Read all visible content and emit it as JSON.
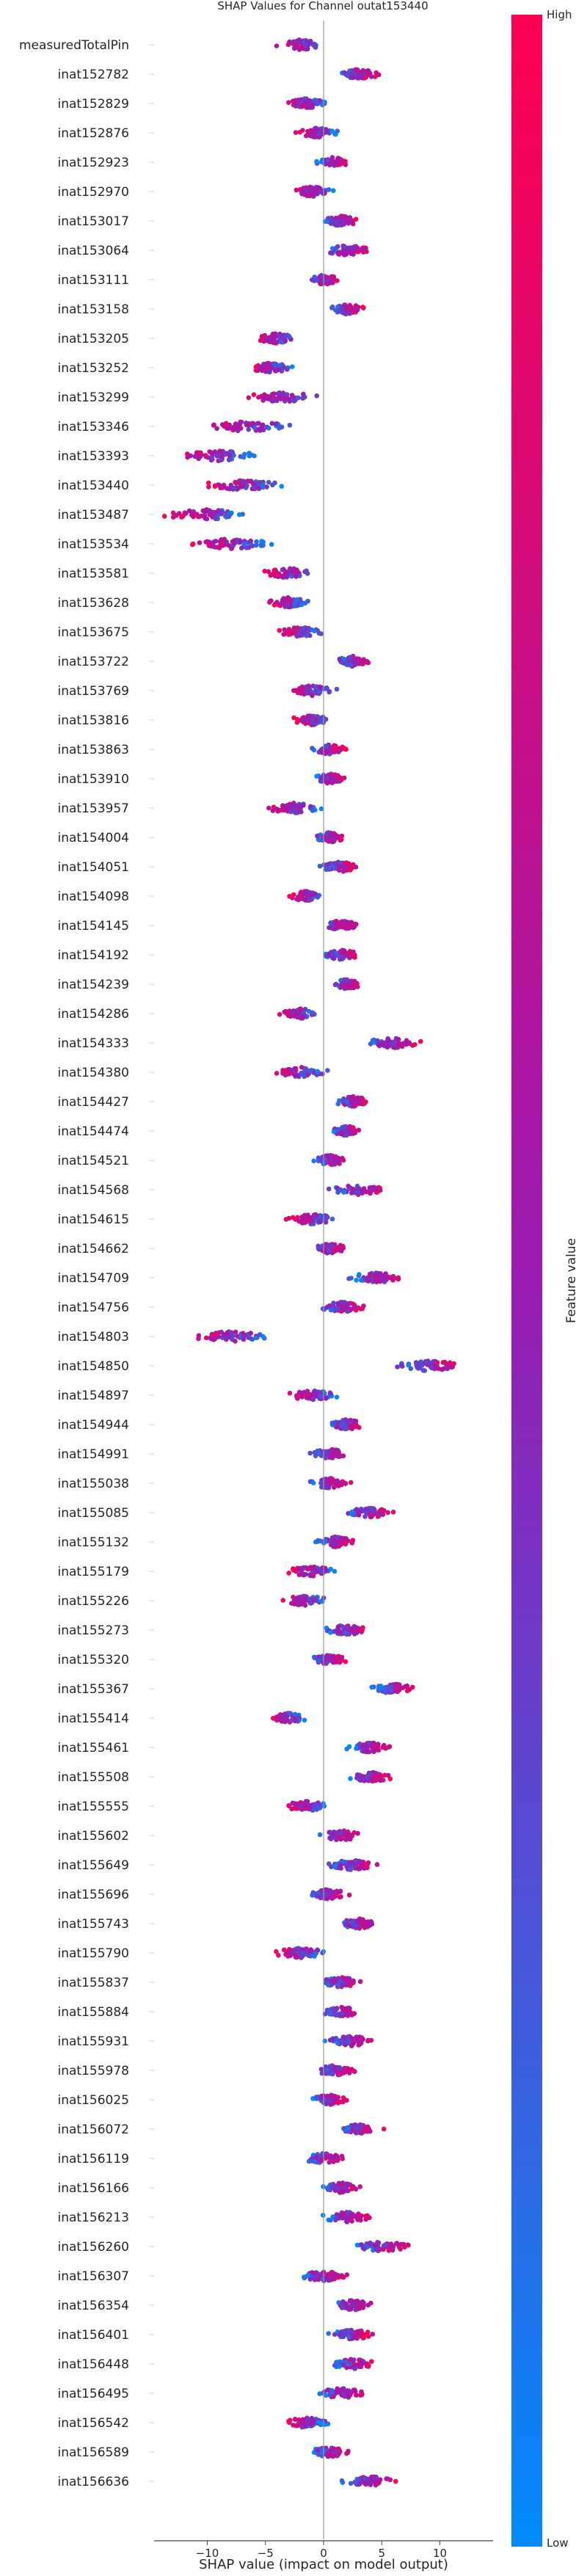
{
  "chart_data": {
    "type": "scatter",
    "subtype": "shap-beeswarm",
    "title": "SHAP Values for Channel outat153440",
    "xlabel": "SHAP value (impact on model output)",
    "xlim": [
      -15,
      14
    ],
    "xticks": [
      -10,
      -5,
      0,
      5,
      10
    ],
    "grid": false,
    "colorbar": {
      "label": "Feature value",
      "high_label": "High",
      "low_label": "Low",
      "low_color": "#008afb",
      "mid_color": "#9a1ab3",
      "high_color": "#ff0052"
    },
    "zero_line_color": "#999999",
    "features": [
      {
        "name": "measuredTotalPin",
        "center": -2.0,
        "spread": 2.8
      },
      {
        "name": "inat152782",
        "center": 3.0,
        "spread": 2.3
      },
      {
        "name": "inat152829",
        "center": -1.5,
        "spread": 2.2
      },
      {
        "name": "inat152876",
        "center": -0.5,
        "spread": 2.3
      },
      {
        "name": "inat152923",
        "center": 0.8,
        "spread": 1.7
      },
      {
        "name": "inat152970",
        "center": -1.0,
        "spread": 2.3
      },
      {
        "name": "inat153017",
        "center": 1.5,
        "spread": 2.0
      },
      {
        "name": "inat153064",
        "center": 2.0,
        "spread": 2.7
      },
      {
        "name": "inat153111",
        "center": 0.0,
        "spread": 1.7
      },
      {
        "name": "inat153158",
        "center": 2.0,
        "spread": 1.8
      },
      {
        "name": "inat153205",
        "center": -4.0,
        "spread": 2.2
      },
      {
        "name": "inat153252",
        "center": -4.5,
        "spread": 2.3
      },
      {
        "name": "inat153299",
        "center": -3.5,
        "spread": 3.8
      },
      {
        "name": "inat153346",
        "center": -6.5,
        "spread": 4.3
      },
      {
        "name": "inat153393",
        "center": -9.0,
        "spread": 4.5
      },
      {
        "name": "inat153440",
        "center": -7.0,
        "spread": 4.3
      },
      {
        "name": "inat153487",
        "center": -10.0,
        "spread": 5.0
      },
      {
        "name": "inat153534",
        "center": -8.0,
        "spread": 4.7
      },
      {
        "name": "inat153581",
        "center": -3.0,
        "spread": 2.8
      },
      {
        "name": "inat153628",
        "center": -3.0,
        "spread": 2.2
      },
      {
        "name": "inat153675",
        "center": -2.0,
        "spread": 2.5
      },
      {
        "name": "inat153722",
        "center": 2.5,
        "spread": 1.8
      },
      {
        "name": "inat153769",
        "center": -1.0,
        "spread": 2.5
      },
      {
        "name": "inat153816",
        "center": -1.0,
        "spread": 2.2
      },
      {
        "name": "inat153863",
        "center": 0.5,
        "spread": 1.7
      },
      {
        "name": "inat153910",
        "center": 0.5,
        "spread": 1.8
      },
      {
        "name": "inat153957",
        "center": -2.5,
        "spread": 3.2
      },
      {
        "name": "inat154004",
        "center": 0.5,
        "spread": 1.7
      },
      {
        "name": "inat154051",
        "center": 1.5,
        "spread": 2.3
      },
      {
        "name": "inat154098",
        "center": -1.5,
        "spread": 2.0
      },
      {
        "name": "inat154145",
        "center": 1.5,
        "spread": 2.0
      },
      {
        "name": "inat154192",
        "center": 1.5,
        "spread": 2.0
      },
      {
        "name": "inat154239",
        "center": 2.0,
        "spread": 1.8
      },
      {
        "name": "inat154286",
        "center": -2.0,
        "spread": 2.3
      },
      {
        "name": "inat154333",
        "center": 6.0,
        "spread": 3.0
      },
      {
        "name": "inat154380",
        "center": -2.0,
        "spread": 2.8
      },
      {
        "name": "inat154427",
        "center": 2.5,
        "spread": 2.0
      },
      {
        "name": "inat154474",
        "center": 2.0,
        "spread": 1.7
      },
      {
        "name": "inat154521",
        "center": 0.5,
        "spread": 2.0
      },
      {
        "name": "inat154568",
        "center": 3.0,
        "spread": 3.3
      },
      {
        "name": "inat154615",
        "center": -1.0,
        "spread": 2.7
      },
      {
        "name": "inat154662",
        "center": 0.5,
        "spread": 2.0
      },
      {
        "name": "inat154709",
        "center": 4.5,
        "spread": 3.3
      },
      {
        "name": "inat154756",
        "center": 1.5,
        "spread": 2.7
      },
      {
        "name": "inat154803",
        "center": -8.0,
        "spread": 4.2
      },
      {
        "name": "inat154850",
        "center": 9.0,
        "spread": 4.3
      },
      {
        "name": "inat154897",
        "center": -1.0,
        "spread": 2.8
      },
      {
        "name": "inat154944",
        "center": 2.0,
        "spread": 2.0
      },
      {
        "name": "inat154991",
        "center": 0.5,
        "spread": 2.3
      },
      {
        "name": "inat155038",
        "center": 0.5,
        "spread": 2.2
      },
      {
        "name": "inat155085",
        "center": 4.0,
        "spread": 2.7
      },
      {
        "name": "inat155132",
        "center": 1.0,
        "spread": 2.2
      },
      {
        "name": "inat155179",
        "center": -1.0,
        "spread": 2.8
      },
      {
        "name": "inat155226",
        "center": -1.5,
        "spread": 2.8
      },
      {
        "name": "inat155273",
        "center": 2.0,
        "spread": 2.5
      },
      {
        "name": "inat155320",
        "center": 0.5,
        "spread": 2.2
      },
      {
        "name": "inat155367",
        "center": 6.0,
        "spread": 2.3
      },
      {
        "name": "inat155414",
        "center": -3.0,
        "spread": 2.0
      },
      {
        "name": "inat155461",
        "center": 4.0,
        "spread": 2.3
      },
      {
        "name": "inat155508",
        "center": 4.0,
        "spread": 2.5
      },
      {
        "name": "inat155555",
        "center": -1.5,
        "spread": 2.5
      },
      {
        "name": "inat155602",
        "center": 1.5,
        "spread": 2.3
      },
      {
        "name": "inat155649",
        "center": 2.5,
        "spread": 2.7
      },
      {
        "name": "inat155696",
        "center": 0.5,
        "spread": 2.2
      },
      {
        "name": "inat155743",
        "center": 3.0,
        "spread": 2.2
      },
      {
        "name": "inat155790",
        "center": -2.0,
        "spread": 2.8
      },
      {
        "name": "inat155837",
        "center": 1.5,
        "spread": 2.2
      },
      {
        "name": "inat155884",
        "center": 1.5,
        "spread": 2.2
      },
      {
        "name": "inat155931",
        "center": 2.5,
        "spread": 2.7
      },
      {
        "name": "inat155978",
        "center": 1.0,
        "spread": 2.2
      },
      {
        "name": "inat156025",
        "center": 0.5,
        "spread": 2.0
      },
      {
        "name": "inat156072",
        "center": 3.0,
        "spread": 2.5
      },
      {
        "name": "inat156119",
        "center": 0.0,
        "spread": 2.3
      },
      {
        "name": "inat156166",
        "center": 1.5,
        "spread": 2.0
      },
      {
        "name": "inat156213",
        "center": 2.0,
        "spread": 2.8
      },
      {
        "name": "inat156260",
        "center": 5.0,
        "spread": 2.7
      },
      {
        "name": "inat156307",
        "center": 0.0,
        "spread": 2.8
      },
      {
        "name": "inat156354",
        "center": 2.5,
        "spread": 2.2
      },
      {
        "name": "inat156401",
        "center": 2.5,
        "spread": 2.3
      },
      {
        "name": "inat156448",
        "center": 2.5,
        "spread": 2.5
      },
      {
        "name": "inat156495",
        "center": 1.5,
        "spread": 2.7
      },
      {
        "name": "inat156542",
        "center": -1.5,
        "spread": 2.3
      },
      {
        "name": "inat156589",
        "center": 0.5,
        "spread": 2.3
      },
      {
        "name": "inat156636",
        "center": 4.0,
        "spread": 3.0
      }
    ]
  }
}
